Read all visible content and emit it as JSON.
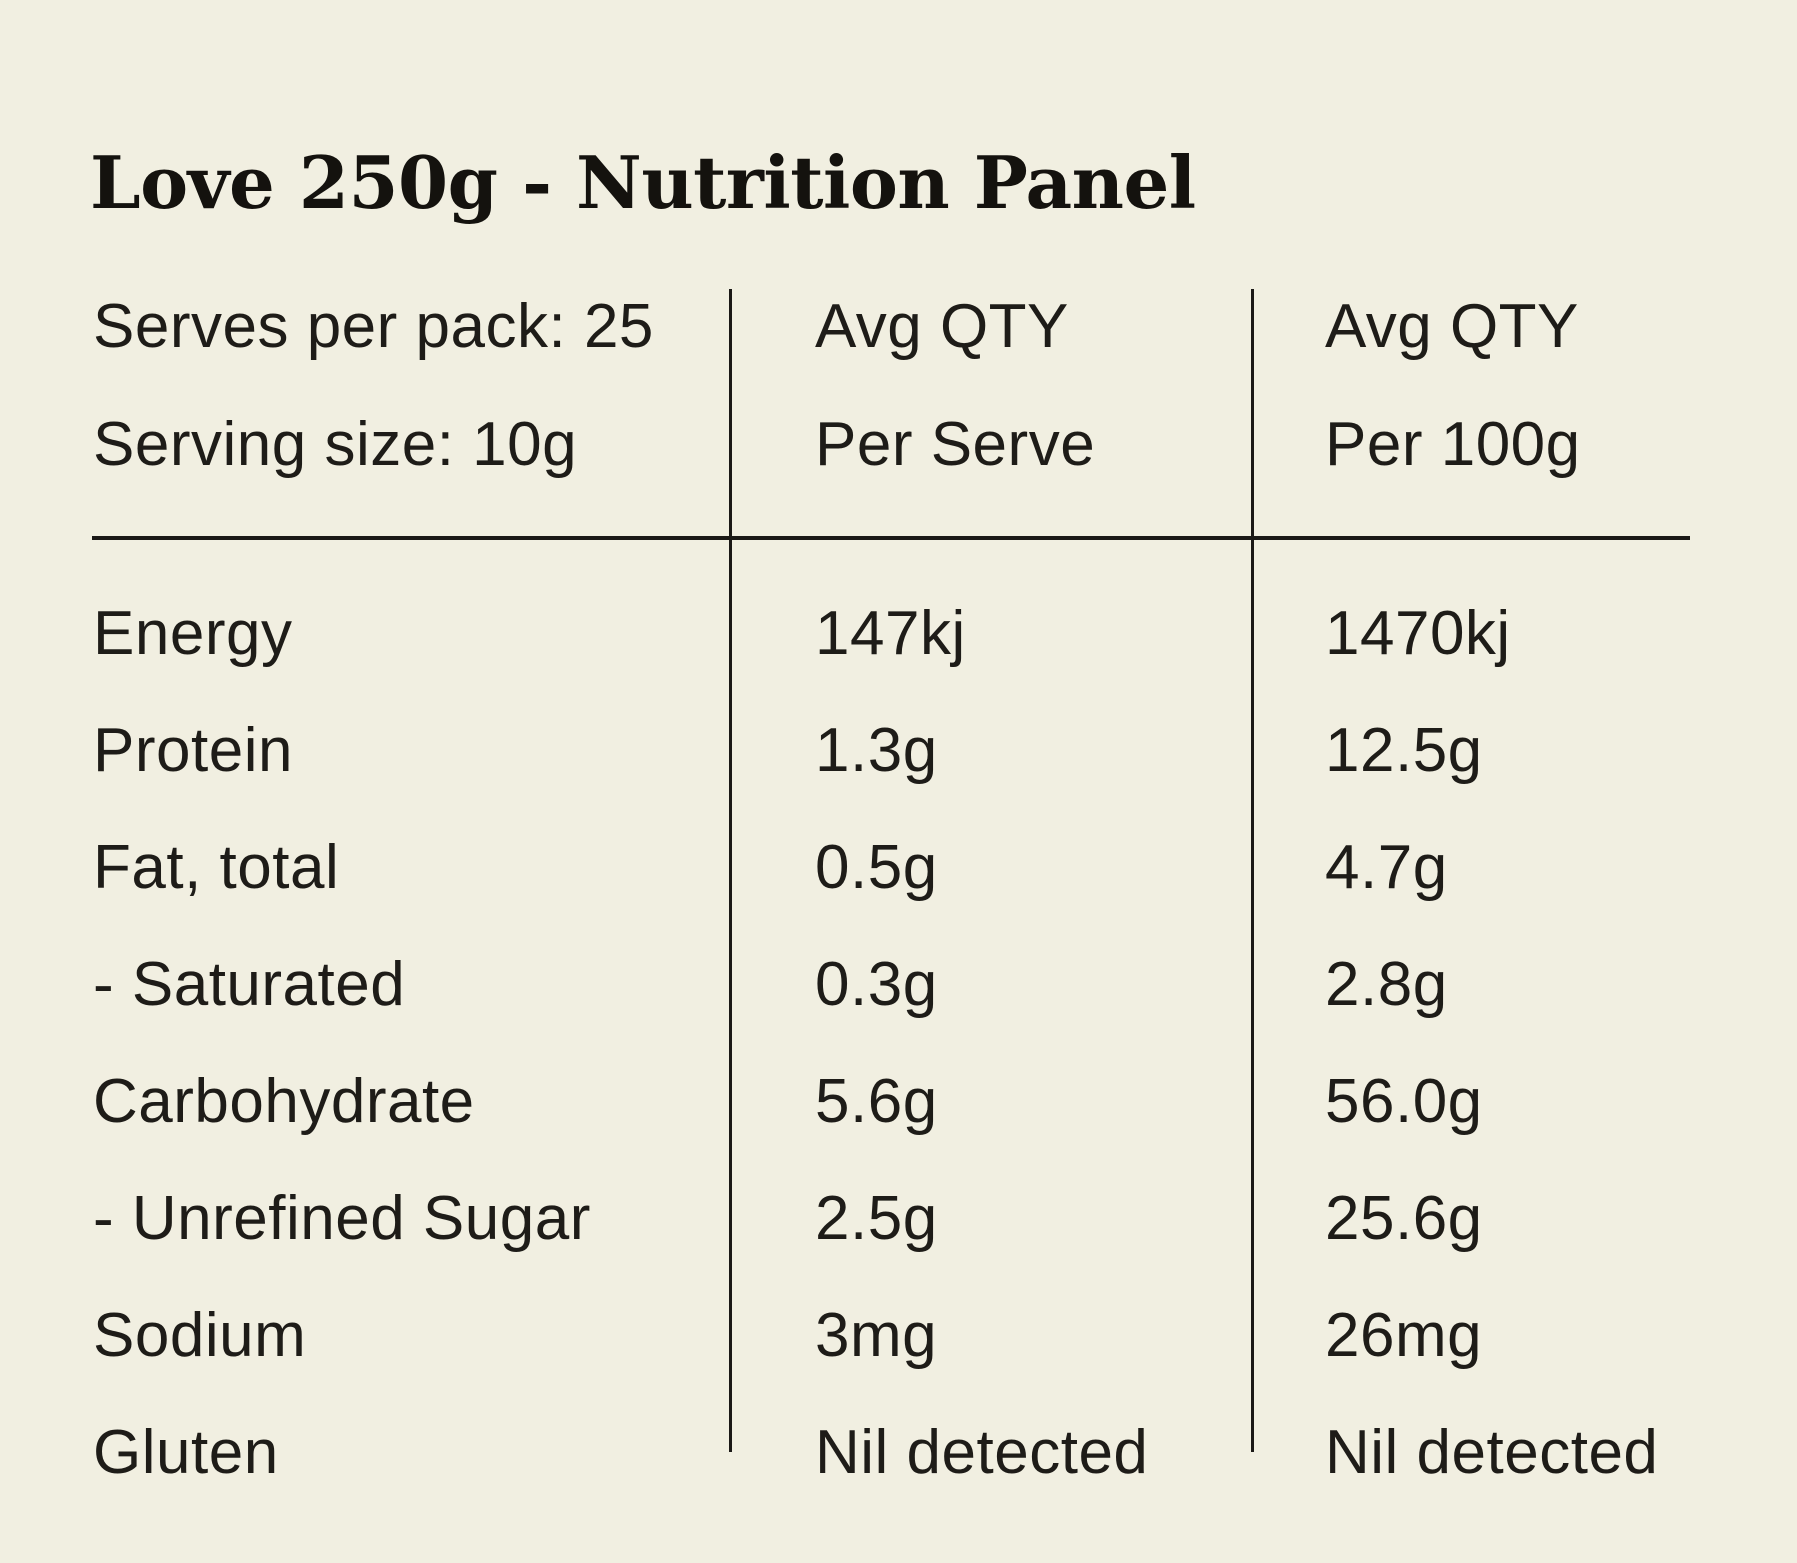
{
  "page": {
    "title": "Love 250g - Nutrition Panel",
    "background_color": "#f1efe1",
    "text_color": "#1e1c18",
    "line_color": "#1b1916"
  },
  "table": {
    "header": {
      "serves_per_pack": "Serves per pack: 25",
      "serving_size": "Serving size: 10g",
      "col2_line1": "Avg QTY",
      "col2_line2": "Per Serve",
      "col3_line1": "Avg QTY",
      "col3_line2": "Per 100g"
    },
    "rows": [
      {
        "label": "Energy",
        "per_serve": "147kj",
        "per_100g": "1470kj"
      },
      {
        "label": "Protein",
        "per_serve": "1.3g",
        "per_100g": "12.5g"
      },
      {
        "label": "Fat, total",
        "per_serve": "0.5g",
        "per_100g": "4.7g"
      },
      {
        "label": "- Saturated",
        "per_serve": "0.3g",
        "per_100g": "2.8g"
      },
      {
        "label": "Carbohydrate",
        "per_serve": "5.6g",
        "per_100g": "56.0g"
      },
      {
        "label": "- Unrefined Sugar",
        "per_serve": "2.5g",
        "per_100g": "25.6g"
      },
      {
        "label": "Sodium",
        "per_serve": "3mg",
        "per_100g": "26mg"
      },
      {
        "label": "Gluten",
        "per_serve": "Nil detected",
        "per_100g": "Nil detected"
      }
    ]
  }
}
